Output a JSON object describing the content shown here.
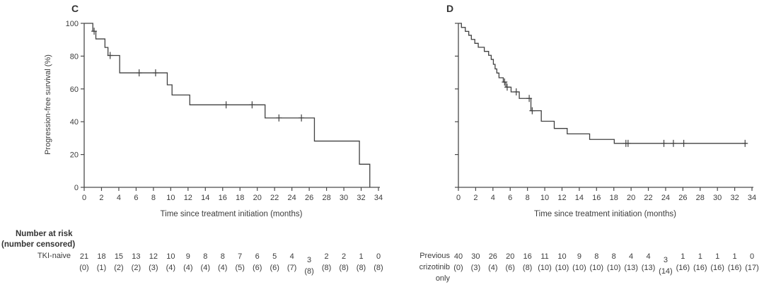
{
  "figure": {
    "risk_header": {
      "line1": "Number at risk",
      "line2": "(number censored)"
    },
    "colors": {
      "curve": "#404040",
      "axis": "#4a4a4a",
      "text": "#3c3c3c",
      "background": "#ffffff"
    }
  },
  "chart_data": [
    {
      "type": "line",
      "subtype": "kaplan-meier-step",
      "panel_label": "C",
      "xlabel": "Time since treatment initiation (months)",
      "ylabel": "Progression-free survival (%)",
      "xlim": [
        0,
        34
      ],
      "ylim": [
        0,
        100
      ],
      "x_ticks": [
        0,
        2,
        4,
        6,
        8,
        10,
        12,
        14,
        16,
        18,
        20,
        22,
        24,
        26,
        28,
        30,
        32,
        34
      ],
      "y_ticks": [
        0,
        20,
        40,
        60,
        80,
        100
      ],
      "show_y_tick_labels": true,
      "steps": [
        [
          0,
          100
        ],
        [
          1.0,
          95.2
        ],
        [
          1.35,
          90.5
        ],
        [
          2.4,
          85.3
        ],
        [
          2.75,
          80.4
        ],
        [
          4.1,
          69.8
        ],
        [
          9.6,
          62.5
        ],
        [
          10.15,
          56.3
        ],
        [
          12.2,
          50.3
        ],
        [
          20.9,
          42.3
        ],
        [
          26.6,
          28.2
        ],
        [
          31.8,
          14.1
        ],
        [
          33.0,
          0
        ]
      ],
      "end_x": 33.0,
      "censor_marks": [
        [
          1.15,
          95.2
        ],
        [
          3.0,
          80.4
        ],
        [
          6.35,
          69.8
        ],
        [
          8.25,
          69.8
        ],
        [
          16.4,
          50.3
        ],
        [
          19.4,
          50.3
        ],
        [
          22.5,
          42.3
        ],
        [
          25.1,
          42.3
        ]
      ],
      "group_label_lines": [
        "TKI-naive"
      ],
      "at_risk": [
        21,
        18,
        15,
        13,
        12,
        10,
        9,
        8,
        8,
        7,
        6,
        5,
        4,
        3,
        2,
        2,
        1,
        0
      ],
      "censored": [
        0,
        1,
        2,
        2,
        3,
        4,
        4,
        4,
        4,
        5,
        6,
        6,
        7,
        8,
        8,
        8,
        8,
        8
      ]
    },
    {
      "type": "line",
      "subtype": "kaplan-meier-step",
      "panel_label": "D",
      "xlabel": "Time since treatment initiation (months)",
      "ylabel": "Progression-free survival (%)",
      "xlim": [
        0,
        34
      ],
      "ylim": [
        0,
        100
      ],
      "x_ticks": [
        0,
        2,
        4,
        6,
        8,
        10,
        12,
        14,
        16,
        18,
        20,
        22,
        24,
        26,
        28,
        30,
        32,
        34
      ],
      "y_ticks": [
        0,
        20,
        40,
        60,
        80,
        100
      ],
      "show_y_tick_labels": false,
      "steps": [
        [
          0,
          100
        ],
        [
          0.35,
          97.5
        ],
        [
          0.8,
          95.1
        ],
        [
          1.2,
          92.7
        ],
        [
          1.5,
          90.2
        ],
        [
          1.9,
          87.8
        ],
        [
          2.3,
          85.4
        ],
        [
          3.0,
          82.9
        ],
        [
          3.5,
          80.5
        ],
        [
          3.8,
          78.0
        ],
        [
          4.05,
          75.0
        ],
        [
          4.25,
          72.2
        ],
        [
          4.45,
          69.7
        ],
        [
          4.7,
          66.8
        ],
        [
          5.2,
          64.2
        ],
        [
          5.5,
          61.1
        ],
        [
          6.1,
          58.2
        ],
        [
          7.05,
          54.2
        ],
        [
          8.4,
          46.7
        ],
        [
          9.6,
          40.3
        ],
        [
          11.1,
          35.9
        ],
        [
          12.6,
          32.6
        ],
        [
          15.2,
          29.2
        ],
        [
          18.05,
          26.8
        ]
      ],
      "end_x": 33.4,
      "censor_marks": [
        [
          5.35,
          64.2
        ],
        [
          5.65,
          61.1
        ],
        [
          6.7,
          58.2
        ],
        [
          8.2,
          54.2
        ],
        [
          8.55,
          46.7
        ],
        [
          19.4,
          26.8
        ],
        [
          19.65,
          26.8
        ],
        [
          23.8,
          26.8
        ],
        [
          24.9,
          26.8
        ],
        [
          26.1,
          26.8
        ],
        [
          33.2,
          26.8
        ]
      ],
      "group_label_lines": [
        "Previous",
        "crizotinib",
        "only"
      ],
      "at_risk": [
        40,
        30,
        26,
        20,
        16,
        11,
        10,
        9,
        8,
        8,
        4,
        4,
        3,
        1,
        1,
        1,
        1,
        0
      ],
      "censored": [
        0,
        3,
        4,
        6,
        8,
        10,
        10,
        10,
        10,
        10,
        13,
        13,
        14,
        16,
        16,
        16,
        16,
        17
      ]
    }
  ]
}
